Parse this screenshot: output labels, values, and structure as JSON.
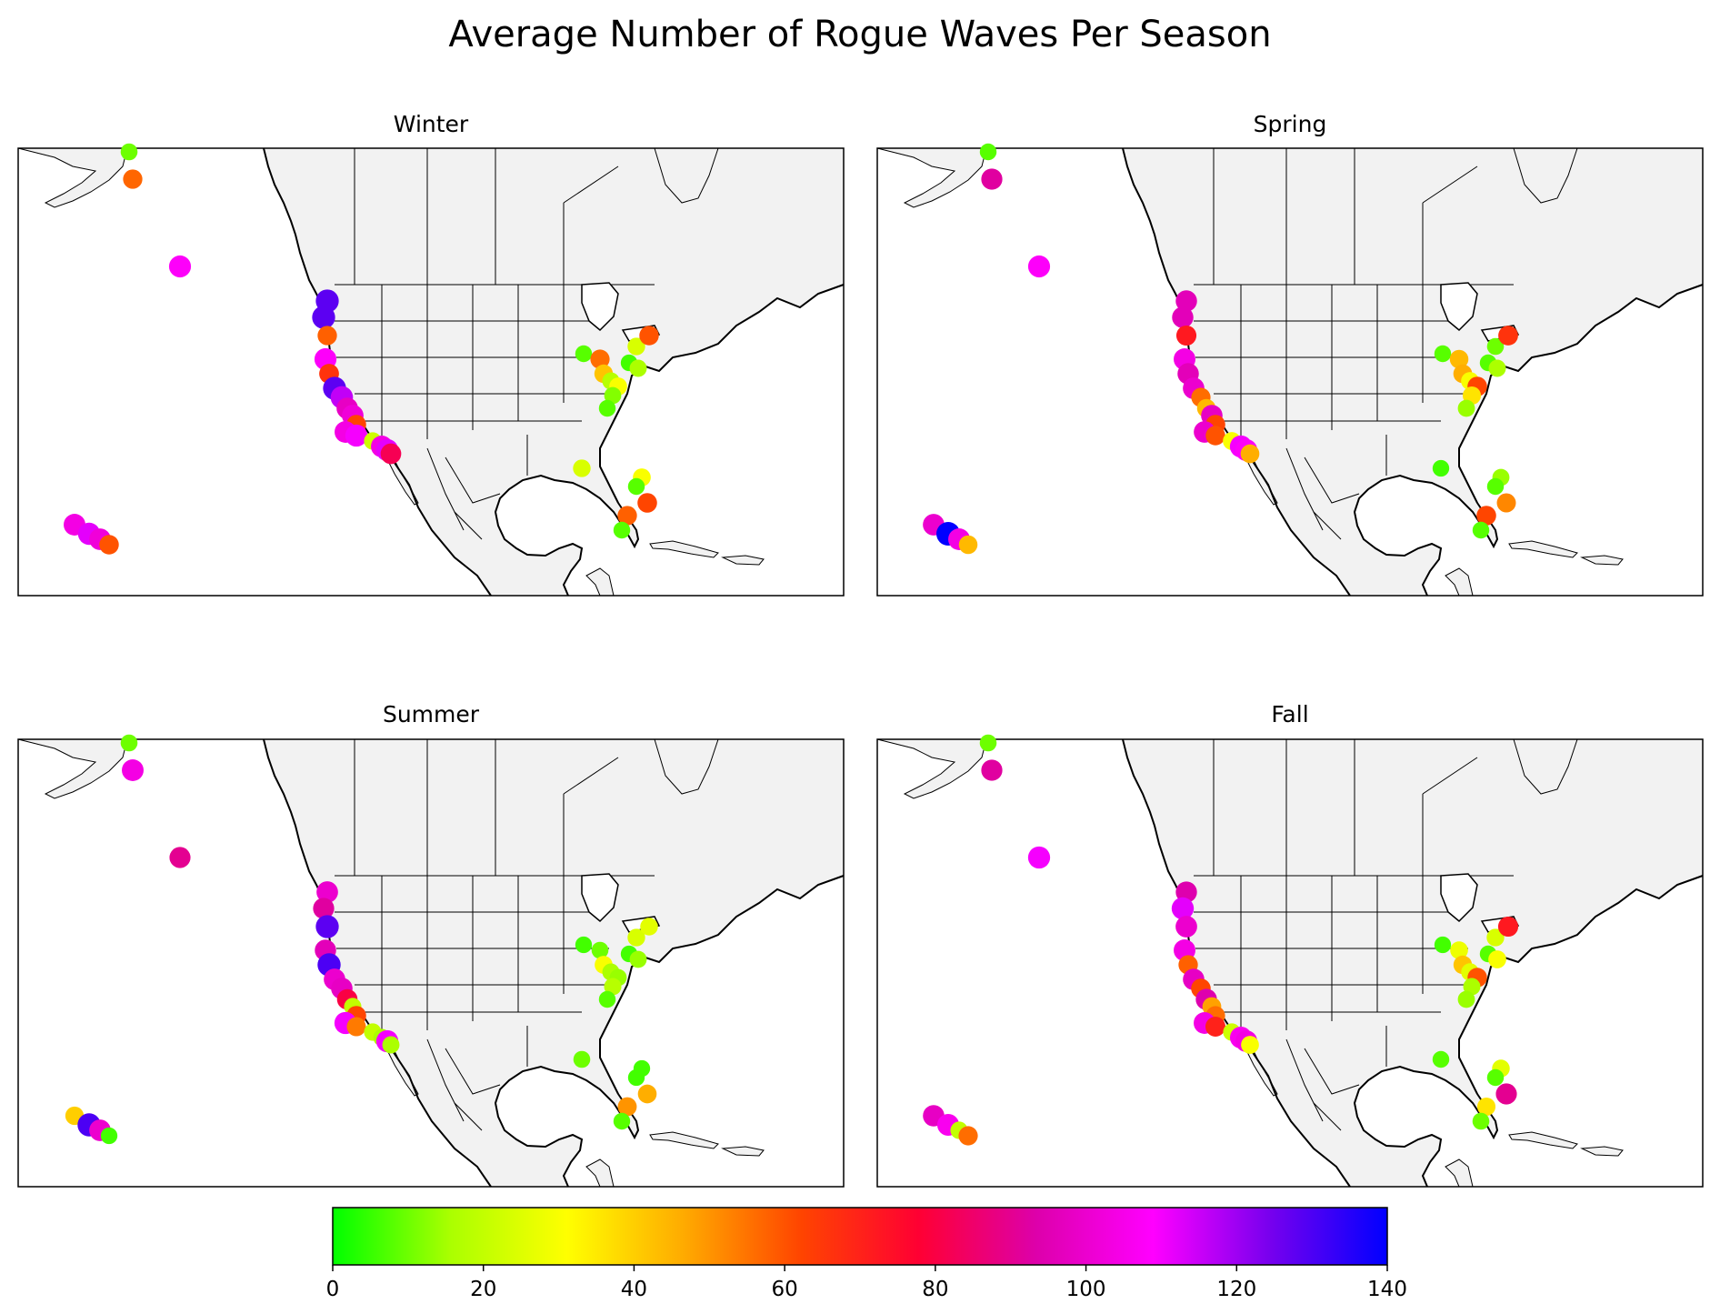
{
  "title": "Average Number of Rogue Waves Per Season",
  "panels": [
    {
      "title": "Winter",
      "points": [
        [
          0,
          0,
          10
        ],
        [
          1,
          14,
          57
        ],
        [
          2,
          23,
          108
        ],
        [
          3,
          26,
          128
        ],
        [
          4,
          27,
          128
        ],
        [
          5,
          28,
          58
        ],
        [
          6,
          30,
          108
        ],
        [
          7,
          31,
          66
        ],
        [
          8,
          32,
          128
        ],
        [
          9,
          33,
          116
        ],
        [
          10,
          34,
          98
        ],
        [
          11,
          35,
          102
        ],
        [
          12,
          36,
          62
        ],
        [
          13,
          37,
          104
        ],
        [
          14,
          38,
          110
        ],
        [
          15,
          39,
          22
        ],
        [
          16,
          40,
          104
        ],
        [
          17,
          41,
          112
        ],
        [
          18,
          42,
          82
        ],
        [
          19,
          43,
          8
        ],
        [
          20,
          44,
          56
        ],
        [
          21,
          45,
          42
        ],
        [
          22,
          46,
          18
        ],
        [
          23,
          47,
          30
        ],
        [
          24,
          48,
          12
        ],
        [
          25,
          49,
          8
        ],
        [
          26,
          50,
          6
        ],
        [
          27,
          51,
          16
        ],
        [
          28,
          52,
          24
        ],
        [
          29,
          53,
          60
        ],
        [
          30,
          54,
          24
        ],
        [
          31,
          55,
          30
        ],
        [
          32,
          56,
          8
        ],
        [
          33,
          57,
          62
        ],
        [
          34,
          58,
          58
        ],
        [
          35,
          59,
          8
        ],
        [
          36,
          60,
          104
        ],
        [
          37,
          61,
          112
        ],
        [
          38,
          62,
          102
        ],
        [
          39,
          63,
          60
        ]
      ]
    },
    {
      "title": "Spring",
      "points": [
        [
          0,
          0,
          8
        ],
        [
          1,
          14,
          92
        ],
        [
          2,
          23,
          108
        ],
        [
          3,
          26,
          96
        ],
        [
          4,
          27,
          96
        ],
        [
          5,
          28,
          72
        ],
        [
          6,
          30,
          104
        ],
        [
          7,
          31,
          96
        ],
        [
          8,
          32,
          100
        ],
        [
          9,
          33,
          56
        ],
        [
          10,
          34,
          44
        ],
        [
          11,
          35,
          98
        ],
        [
          12,
          36,
          62
        ],
        [
          13,
          37,
          100
        ],
        [
          14,
          38,
          60
        ],
        [
          15,
          39,
          30
        ],
        [
          16,
          40,
          110
        ],
        [
          17,
          41,
          108
        ],
        [
          18,
          42,
          46
        ],
        [
          19,
          43,
          8
        ],
        [
          20,
          44,
          44
        ],
        [
          21,
          45,
          46
        ],
        [
          22,
          46,
          30
        ],
        [
          23,
          47,
          62
        ],
        [
          24,
          48,
          36
        ],
        [
          25,
          49,
          14
        ],
        [
          26,
          50,
          8
        ],
        [
          27,
          51,
          16
        ],
        [
          28,
          52,
          10
        ],
        [
          29,
          53,
          66
        ],
        [
          30,
          54,
          6
        ],
        [
          31,
          55,
          14
        ],
        [
          32,
          56,
          8
        ],
        [
          33,
          57,
          52
        ],
        [
          34,
          58,
          62
        ],
        [
          35,
          59,
          8
        ],
        [
          36,
          60,
          100
        ],
        [
          37,
          61,
          140
        ],
        [
          38,
          62,
          104
        ],
        [
          39,
          63,
          44
        ]
      ]
    },
    {
      "title": "Summer",
      "points": [
        [
          0,
          0,
          10
        ],
        [
          1,
          14,
          104
        ],
        [
          2,
          23,
          90
        ],
        [
          3,
          26,
          100
        ],
        [
          4,
          27,
          92
        ],
        [
          5,
          28,
          128
        ],
        [
          6,
          30,
          96
        ],
        [
          7,
          31,
          130
        ],
        [
          8,
          32,
          100
        ],
        [
          9,
          33,
          98
        ],
        [
          10,
          34,
          80
        ],
        [
          11,
          35,
          20
        ],
        [
          12,
          36,
          62
        ],
        [
          13,
          37,
          110
        ],
        [
          14,
          38,
          54
        ],
        [
          15,
          39,
          20
        ],
        [
          16,
          40,
          16
        ],
        [
          17,
          41,
          110
        ],
        [
          18,
          42,
          16
        ],
        [
          19,
          43,
          6
        ],
        [
          20,
          44,
          10
        ],
        [
          21,
          45,
          30
        ],
        [
          22,
          46,
          16
        ],
        [
          23,
          47,
          14
        ],
        [
          24,
          48,
          18
        ],
        [
          25,
          49,
          8
        ],
        [
          26,
          50,
          6
        ],
        [
          27,
          51,
          14
        ],
        [
          28,
          52,
          24
        ],
        [
          29,
          53,
          26
        ],
        [
          30,
          54,
          10
        ],
        [
          31,
          55,
          6
        ],
        [
          32,
          56,
          6
        ],
        [
          33,
          57,
          46
        ],
        [
          34,
          58,
          50
        ],
        [
          35,
          59,
          8
        ],
        [
          36,
          60,
          40
        ],
        [
          37,
          61,
          130
        ],
        [
          38,
          62,
          100
        ],
        [
          39,
          63,
          6
        ]
      ]
    },
    {
      "title": "Fall",
      "points": [
        [
          0,
          0,
          10
        ],
        [
          1,
          14,
          92
        ],
        [
          2,
          23,
          110
        ],
        [
          3,
          26,
          94
        ],
        [
          4,
          27,
          112
        ],
        [
          5,
          28,
          100
        ],
        [
          6,
          30,
          104
        ],
        [
          7,
          31,
          58
        ],
        [
          8,
          32,
          98
        ],
        [
          9,
          33,
          62
        ],
        [
          10,
          34,
          94
        ],
        [
          11,
          35,
          48
        ],
        [
          12,
          36,
          56
        ],
        [
          13,
          37,
          104
        ],
        [
          14,
          38,
          70
        ],
        [
          15,
          39,
          22
        ],
        [
          16,
          40,
          106
        ],
        [
          17,
          41,
          104
        ],
        [
          18,
          42,
          30
        ],
        [
          19,
          43,
          6
        ],
        [
          20,
          44,
          28
        ],
        [
          21,
          45,
          42
        ],
        [
          22,
          46,
          26
        ],
        [
          23,
          47,
          60
        ],
        [
          24,
          48,
          16
        ],
        [
          25,
          49,
          14
        ],
        [
          26,
          50,
          8
        ],
        [
          27,
          51,
          30
        ],
        [
          28,
          52,
          24
        ],
        [
          29,
          53,
          72
        ],
        [
          30,
          54,
          8
        ],
        [
          31,
          55,
          26
        ],
        [
          32,
          56,
          8
        ],
        [
          33,
          57,
          90
        ],
        [
          34,
          58,
          36
        ],
        [
          35,
          59,
          10
        ],
        [
          36,
          60,
          98
        ],
        [
          37,
          61,
          106
        ],
        [
          38,
          62,
          20
        ],
        [
          39,
          63,
          56
        ]
      ]
    }
  ],
  "colorbar": {
    "min": 0,
    "max": 140,
    "ticks": [
      "0",
      "20",
      "40",
      "60",
      "80",
      "100",
      "120",
      "140"
    ],
    "stops": [
      "#00ff00",
      "#aaff00",
      "#ffff00",
      "#ffaa00",
      "#ff4400",
      "#ff0033",
      "#dd00aa",
      "#ff00ff",
      "#7700ee",
      "#0000ff"
    ]
  },
  "styles": {
    "land": "#f2f2f2",
    "outline": "#000000",
    "ocean": "#ffffff"
  }
}
